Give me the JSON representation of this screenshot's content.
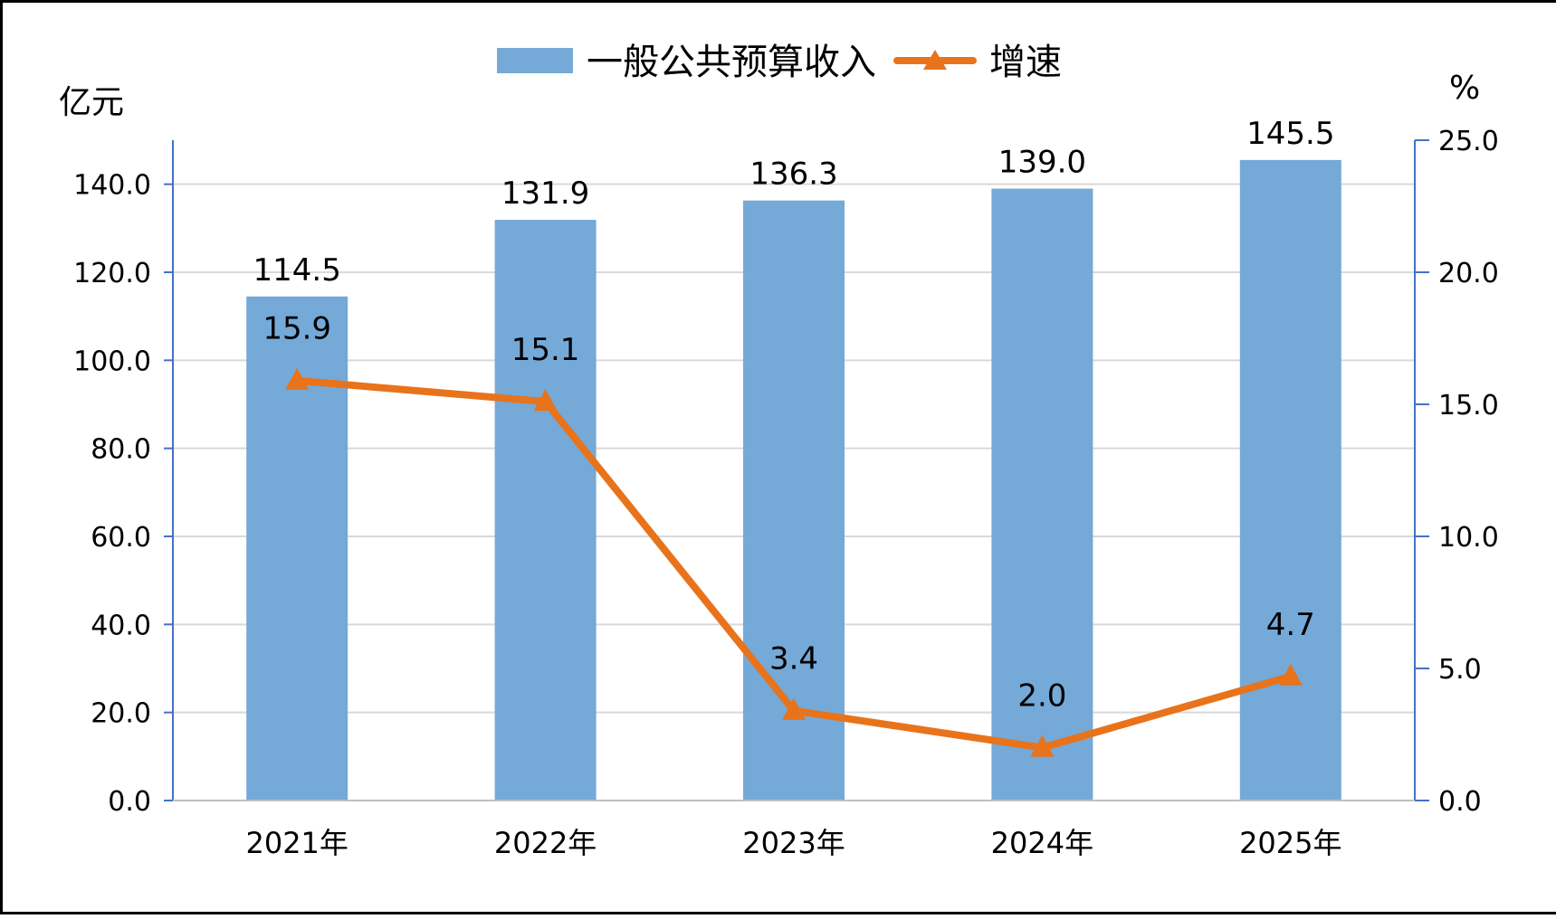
{
  "chart_data": {
    "type": "bar",
    "categories": [
      "2021年",
      "2022年",
      "2023年",
      "2024年",
      "2025年"
    ],
    "series": [
      {
        "name": "一般公共预算收入",
        "type": "bar",
        "axis": "left",
        "values": [
          114.5,
          131.9,
          136.3,
          139.0,
          145.5
        ],
        "labels": [
          "114.5",
          "131.9",
          "136.3",
          "139.0",
          "145.5"
        ],
        "color": "#74a9d8"
      },
      {
        "name": "增速",
        "type": "line",
        "axis": "right",
        "values": [
          15.9,
          15.1,
          3.4,
          2.0,
          4.7
        ],
        "labels": [
          "15.9",
          "15.1",
          "3.4",
          "2.0",
          "4.7"
        ],
        "color": "#e8731b",
        "marker": "triangle"
      }
    ],
    "ylabel": "亿元",
    "y2label": "%",
    "ylim": [
      0,
      150
    ],
    "y2lim": [
      0,
      25
    ],
    "yticks": [
      "0.0",
      "20.0",
      "40.0",
      "60.0",
      "80.0",
      "100.0",
      "120.0",
      "140.0"
    ],
    "y2ticks": [
      "0.0",
      "5.0",
      "10.0",
      "15.0",
      "20.0",
      "25.0"
    ],
    "grid": true,
    "legend": "top-center",
    "axis_color": "#4472c4",
    "grid_color": "#d9d9d9"
  }
}
